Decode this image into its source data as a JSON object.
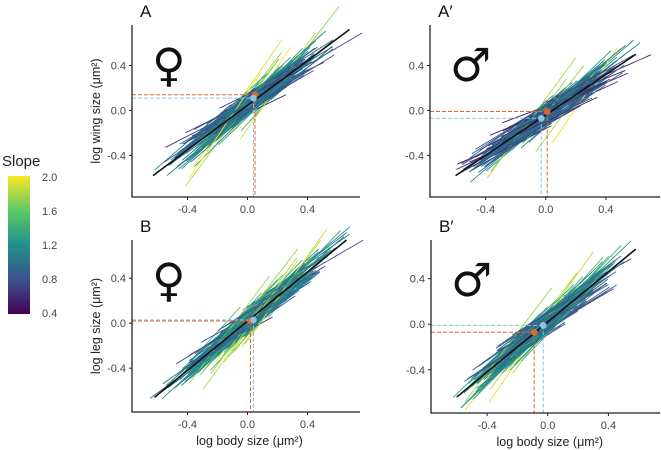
{
  "chart_data": {
    "type": "line",
    "colorbar": {
      "title": "Slope",
      "ticks": [
        "2.0",
        "1.6",
        "1.2",
        "0.8",
        "0.4"
      ],
      "range": [
        0.4,
        2.0
      ],
      "colors": [
        "#440154",
        "#3b528b",
        "#21908d",
        "#5dc963",
        "#fde725"
      ]
    },
    "point_colors": {
      "orange": "#e0652a",
      "blue": "#8cc3e3"
    },
    "panels": [
      {
        "label": "A",
        "sex": "♀",
        "ylabel": "log wing size (μm²)",
        "xlabel": "",
        "xticks": [
          "-0.4",
          "0.0",
          "0.4"
        ],
        "yticks": [
          "0.4",
          "0.0",
          "-0.4"
        ],
        "xlim": [
          -0.77,
          0.75
        ],
        "ylim": [
          -0.77,
          0.76
        ],
        "fit_line": [
          [
            -0.63,
            -0.58
          ],
          [
            0.68,
            0.72
          ]
        ],
        "points": {
          "orange": [
            0.05,
            0.14
          ],
          "blue": [
            0.04,
            0.11
          ]
        },
        "n_lines": 170,
        "seed": 11
      },
      {
        "label": "A′",
        "sex": "♂",
        "ylabel": "",
        "xlabel": "",
        "xticks": [
          "-0.4",
          "0.0",
          "0.4"
        ],
        "yticks": [
          "0.4",
          "0.0",
          "-0.4"
        ],
        "xlim": [
          -0.77,
          0.76
        ],
        "ylim": [
          -0.77,
          0.76
        ],
        "fit_line": [
          [
            -0.6,
            -0.58
          ],
          [
            0.6,
            0.5
          ]
        ],
        "points": {
          "orange": [
            0.01,
            -0.01
          ],
          "blue": [
            -0.03,
            -0.07
          ]
        },
        "n_lines": 170,
        "seed": 23
      },
      {
        "label": "B",
        "sex": "♀",
        "ylabel": "log leg size (μm²)",
        "xlabel": "log body size (μm²)",
        "xticks": [
          "-0.4",
          "0.0",
          "0.4"
        ],
        "yticks": [
          "0.4",
          "0.0",
          "-0.4"
        ],
        "xlim": [
          -0.77,
          0.75
        ],
        "ylim": [
          -0.79,
          0.74
        ],
        "fit_line": [
          [
            -0.62,
            -0.66
          ],
          [
            0.66,
            0.74
          ]
        ],
        "points": {
          "orange": [
            0.02,
            0.02
          ],
          "blue": [
            0.04,
            0.03
          ]
        },
        "n_lines": 170,
        "seed": 37
      },
      {
        "label": "B′",
        "sex": "♂",
        "ylabel": "",
        "xlabel": "log body size (μm²)",
        "xticks": [
          "-0.4",
          "0.0",
          "0.4"
        ],
        "yticks": [
          "0.4",
          "0.0",
          "-0.4"
        ],
        "xlim": [
          -0.77,
          0.74
        ],
        "ylim": [
          -0.78,
          0.74
        ],
        "fit_line": [
          [
            -0.6,
            -0.64
          ],
          [
            0.58,
            0.66
          ]
        ],
        "points": {
          "orange": [
            -0.09,
            -0.07
          ],
          "blue": [
            -0.03,
            -0.01
          ]
        },
        "n_lines": 170,
        "seed": 53
      }
    ]
  }
}
